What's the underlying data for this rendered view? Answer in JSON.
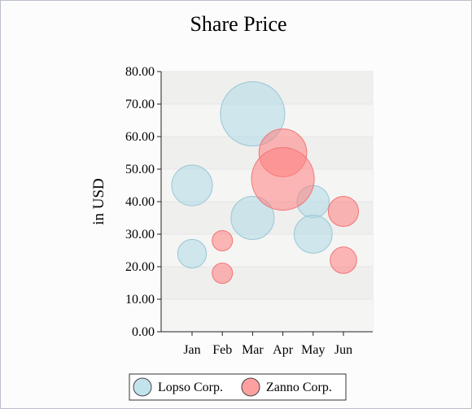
{
  "chart_data": {
    "type": "bubble",
    "title": "Share Price",
    "xlabel": "",
    "ylabel": "in USD",
    "categories": [
      "Jan",
      "Feb",
      "Mar",
      "Apr",
      "May",
      "Jun"
    ],
    "ylim": [
      0,
      80
    ],
    "yticks": [
      "0.00",
      "10.00",
      "20.00",
      "30.00",
      "40.00",
      "50.00",
      "60.00",
      "70.00",
      "80.00"
    ],
    "grid": true,
    "legend": "bottom",
    "series": [
      {
        "name": "Lopso Corp.",
        "color": "#add8e6",
        "points": [
          {
            "x": "Jan",
            "y": 45,
            "size": 4
          },
          {
            "x": "Jan",
            "y": 24,
            "size": 2
          },
          {
            "x": "Mar",
            "y": 67,
            "size": 10
          },
          {
            "x": "Mar",
            "y": 35,
            "size": 4.5
          },
          {
            "x": "May",
            "y": 40,
            "size": 2.5
          },
          {
            "x": "May",
            "y": 30,
            "size": 3.5
          }
        ]
      },
      {
        "name": "Zanno Corp.",
        "color": "#ff8080",
        "points": [
          {
            "x": "Feb",
            "y": 28,
            "size": 1
          },
          {
            "x": "Feb",
            "y": 18,
            "size": 1
          },
          {
            "x": "Apr",
            "y": 55,
            "size": 5.5
          },
          {
            "x": "Apr",
            "y": 47,
            "size": 9.5
          },
          {
            "x": "Jun",
            "y": 37,
            "size": 2.2
          },
          {
            "x": "Jun",
            "y": 22,
            "size": 1.7
          }
        ]
      }
    ]
  }
}
